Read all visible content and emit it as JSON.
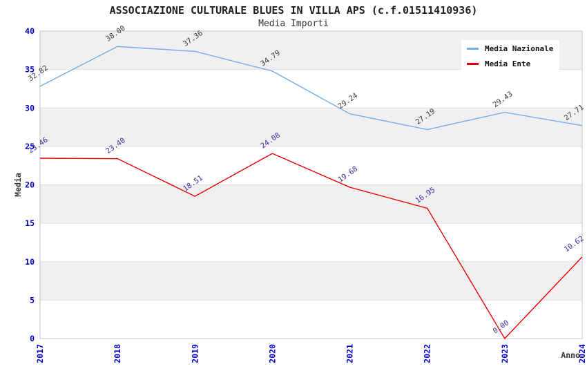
{
  "header": {
    "title": "ASSOCIAZIONE CULTURALE BLUES IN VILLA APS (c.f.01511410936)",
    "subtitle": "Media Importi"
  },
  "chart_data": {
    "type": "line",
    "x": [
      "2017",
      "2018",
      "2019",
      "2020",
      "2021",
      "2022",
      "2023",
      "2024"
    ],
    "series": [
      {
        "name": "Media Nazionale",
        "color": "#74ace6",
        "label_color": "#3a3a3a",
        "values": [
          32.82,
          38.0,
          37.36,
          34.79,
          29.24,
          27.19,
          29.43,
          27.71
        ]
      },
      {
        "name": "Media Ente",
        "color": "#e60000",
        "label_color": "#333399",
        "values": [
          23.46,
          23.4,
          18.51,
          24.08,
          19.68,
          16.95,
          0.0,
          10.62
        ]
      }
    ],
    "title": "ASSOCIAZIONE CULTURALE BLUES IN VILLA APS (c.f.01511410936)",
    "subtitle": "Media Importi",
    "xlabel": "Anno",
    "ylabel": "Media",
    "ylim": [
      0,
      40
    ],
    "yticks": [
      0,
      5,
      10,
      15,
      20,
      25,
      30,
      35,
      40
    ],
    "grid": "horizontal-bands",
    "legend_position": "top-right",
    "tick_color": "#0000cc",
    "band_color": "#f0f0f0",
    "gridline_color": "#e0e0e0",
    "border_color": "#c4c4c4",
    "data_label_decimals": 2
  }
}
